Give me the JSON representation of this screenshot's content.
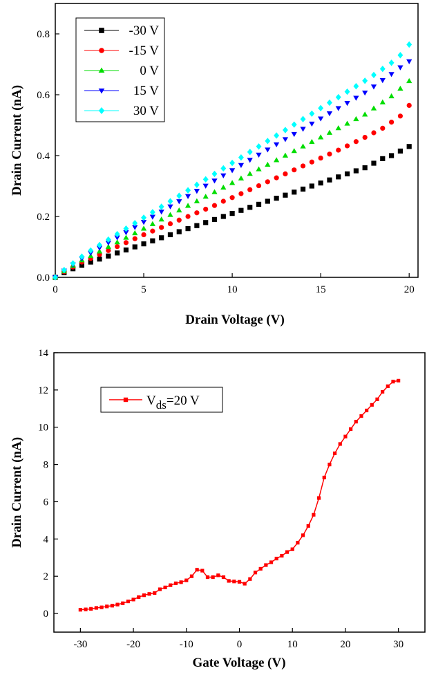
{
  "chart_data": [
    {
      "type": "scatter",
      "xlabel": "Drain Voltage (V)",
      "ylabel": "Drain Current (nA)",
      "xlim": [
        0,
        20.5
      ],
      "ylim": [
        0,
        0.9
      ],
      "xticks": [
        0,
        5,
        10,
        15,
        20
      ],
      "yticks": [
        0.0,
        0.2,
        0.4,
        0.6,
        0.8
      ],
      "ytick_labels": [
        "0.0",
        "0.2",
        "0.4",
        "0.6",
        "0.8"
      ],
      "legend_position": "top-left",
      "x": [
        0,
        0.5,
        1,
        1.5,
        2,
        2.5,
        3,
        3.5,
        4,
        4.5,
        5,
        5.5,
        6,
        6.5,
        7,
        7.5,
        8,
        8.5,
        9,
        9.5,
        10,
        10.5,
        11,
        11.5,
        12,
        12.5,
        13,
        13.5,
        14,
        14.5,
        15,
        15.5,
        16,
        16.5,
        17,
        17.5,
        18,
        18.5,
        19,
        19.5,
        20
      ],
      "series": [
        {
          "name": "-30 V",
          "marker": "square",
          "color": "#000000",
          "values": [
            0,
            0.015,
            0.028,
            0.04,
            0.05,
            0.06,
            0.07,
            0.08,
            0.09,
            0.1,
            0.11,
            0.12,
            0.13,
            0.14,
            0.15,
            0.16,
            0.17,
            0.18,
            0.19,
            0.2,
            0.21,
            0.22,
            0.23,
            0.24,
            0.25,
            0.26,
            0.27,
            0.28,
            0.29,
            0.3,
            0.31,
            0.32,
            0.33,
            0.34,
            0.35,
            0.36,
            0.375,
            0.39,
            0.4,
            0.415,
            0.43
          ]
        },
        {
          "name": "-15 V",
          "marker": "circle",
          "color": "#ff0000",
          "values": [
            0,
            0.018,
            0.034,
            0.05,
            0.062,
            0.075,
            0.088,
            0.101,
            0.114,
            0.127,
            0.14,
            0.152,
            0.164,
            0.176,
            0.188,
            0.2,
            0.212,
            0.224,
            0.236,
            0.25,
            0.262,
            0.275,
            0.288,
            0.301,
            0.314,
            0.327,
            0.34,
            0.353,
            0.366,
            0.379,
            0.392,
            0.405,
            0.418,
            0.432,
            0.446,
            0.46,
            0.475,
            0.49,
            0.51,
            0.53,
            0.565
          ]
        },
        {
          "name": "0 V",
          "marker": "triangle-up",
          "color": "#00dd00",
          "values": [
            0,
            0.02,
            0.038,
            0.056,
            0.07,
            0.085,
            0.1,
            0.115,
            0.13,
            0.145,
            0.16,
            0.175,
            0.19,
            0.205,
            0.22,
            0.235,
            0.25,
            0.265,
            0.28,
            0.295,
            0.31,
            0.325,
            0.34,
            0.355,
            0.37,
            0.385,
            0.4,
            0.415,
            0.43,
            0.445,
            0.46,
            0.475,
            0.49,
            0.505,
            0.52,
            0.535,
            0.555,
            0.575,
            0.595,
            0.62,
            0.645
          ]
        },
        {
          "name": "15 V",
          "marker": "triangle-down",
          "color": "#0000ff",
          "values": [
            0,
            0.022,
            0.042,
            0.062,
            0.08,
            0.097,
            0.114,
            0.131,
            0.148,
            0.165,
            0.182,
            0.199,
            0.216,
            0.233,
            0.25,
            0.267,
            0.284,
            0.301,
            0.318,
            0.335,
            0.352,
            0.369,
            0.386,
            0.403,
            0.42,
            0.437,
            0.454,
            0.471,
            0.488,
            0.505,
            0.522,
            0.539,
            0.556,
            0.573,
            0.59,
            0.607,
            0.627,
            0.648,
            0.668,
            0.69,
            0.71
          ]
        },
        {
          "name": "30 V",
          "marker": "diamond",
          "color": "#00ffff",
          "values": [
            0,
            0.024,
            0.046,
            0.068,
            0.088,
            0.106,
            0.124,
            0.142,
            0.16,
            0.178,
            0.196,
            0.214,
            0.232,
            0.25,
            0.268,
            0.286,
            0.304,
            0.322,
            0.34,
            0.358,
            0.376,
            0.394,
            0.412,
            0.43,
            0.448,
            0.466,
            0.484,
            0.502,
            0.52,
            0.538,
            0.556,
            0.574,
            0.592,
            0.61,
            0.628,
            0.646,
            0.665,
            0.685,
            0.705,
            0.73,
            0.765
          ]
        }
      ]
    },
    {
      "type": "line",
      "xlabel": "Gate Voltage (V)",
      "ylabel": "Drain Current (nA)",
      "xlim": [
        -35,
        35
      ],
      "ylim": [
        -1,
        14
      ],
      "xticks": [
        -30,
        -20,
        -10,
        0,
        10,
        20,
        30
      ],
      "yticks": [
        0,
        2,
        4,
        6,
        8,
        10,
        12,
        14
      ],
      "legend_position": "top-left",
      "series": [
        {
          "name_main": "V",
          "name_sub": "ds",
          "name_rest": "=20 V",
          "marker": "square",
          "color": "#ff0000",
          "x": [
            -30,
            -29,
            -28,
            -27,
            -26,
            -25,
            -24,
            -23,
            -22,
            -21,
            -20,
            -19,
            -18,
            -17,
            -16,
            -15,
            -14,
            -13,
            -12,
            -11,
            -10,
            -9,
            -8,
            -7,
            -6,
            -5,
            -4,
            -3,
            -2,
            -1,
            0,
            1,
            2,
            3,
            4,
            5,
            6,
            7,
            8,
            9,
            10,
            11,
            12,
            13,
            14,
            15,
            16,
            17,
            18,
            19,
            20,
            21,
            22,
            23,
            24,
            25,
            26,
            27,
            28,
            29,
            30
          ],
          "values": [
            0.2,
            0.22,
            0.25,
            0.3,
            0.33,
            0.38,
            0.42,
            0.48,
            0.55,
            0.65,
            0.75,
            0.88,
            0.98,
            1.05,
            1.1,
            1.3,
            1.4,
            1.52,
            1.62,
            1.68,
            1.78,
            2.0,
            2.35,
            2.3,
            1.95,
            1.95,
            2.05,
            1.95,
            1.75,
            1.72,
            1.7,
            1.6,
            1.85,
            2.2,
            2.4,
            2.6,
            2.75,
            2.95,
            3.1,
            3.3,
            3.45,
            3.8,
            4.2,
            4.7,
            5.3,
            6.2,
            7.3,
            8.0,
            8.6,
            9.1,
            9.5,
            9.9,
            10.3,
            10.6,
            10.9,
            11.2,
            11.5,
            11.9,
            12.2,
            12.45,
            12.5
          ]
        }
      ]
    }
  ]
}
